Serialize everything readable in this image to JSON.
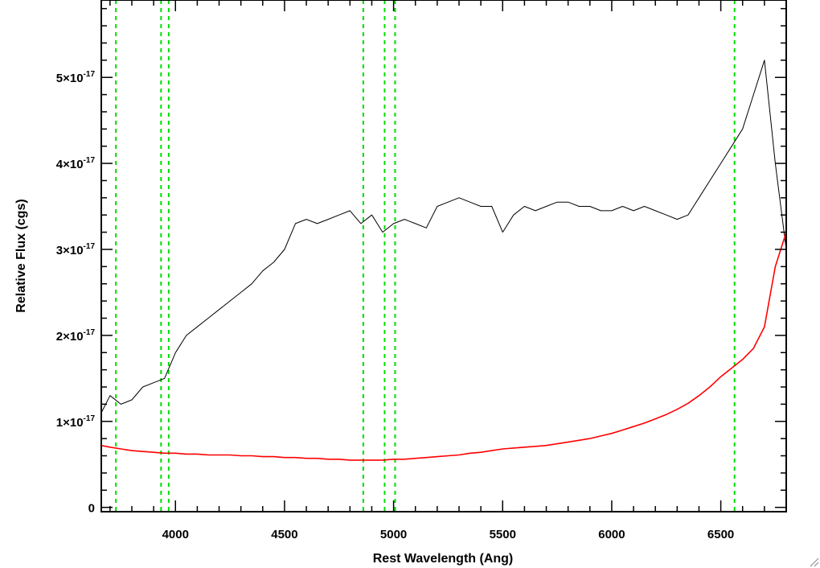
{
  "chart_data": {
    "type": "line",
    "title": "",
    "xlabel": "Rest Wavelength (Ang)",
    "ylabel": "Relative Flux (cgs)",
    "xlim": [
      3660,
      6800
    ],
    "ylim": [
      -5e-19,
      5.9e-17
    ],
    "grid": false,
    "x_ticks": [
      4000,
      4500,
      5000,
      5500,
      6000,
      6500
    ],
    "x_tick_labels": [
      "4000",
      "4500",
      "5000",
      "5500",
      "6000",
      "6500"
    ],
    "y_ticks": [
      0,
      1e-17,
      2e-17,
      3e-17,
      4e-17,
      5e-17
    ],
    "y_tick_labels": [
      {
        "mantissa": "0",
        "exponent": ""
      },
      {
        "mantissa": "1×10",
        "exponent": "-17"
      },
      {
        "mantissa": "2×10",
        "exponent": "-17"
      },
      {
        "mantissa": "3×10",
        "exponent": "-17"
      },
      {
        "mantissa": "4×10",
        "exponent": "-17"
      },
      {
        "mantissa": "5×10",
        "exponent": "-17"
      }
    ],
    "vertical_lines": [
      3727,
      3934,
      3969,
      4861,
      4959,
      5007,
      6563
    ],
    "series": [
      {
        "color": "#000000",
        "style": "solid",
        "x": [
          3660,
          3700,
          3750,
          3800,
          3850,
          3900,
          3950,
          4000,
          4050,
          4100,
          4150,
          4200,
          4250,
          4300,
          4350,
          4400,
          4450,
          4500,
          4550,
          4600,
          4650,
          4700,
          4750,
          4800,
          4850,
          4900,
          4950,
          5000,
          5050,
          5100,
          5150,
          5200,
          5250,
          5300,
          5350,
          5400,
          5450,
          5500,
          5550,
          5600,
          5650,
          5700,
          5750,
          5800,
          5850,
          5900,
          5950,
          6000,
          6050,
          6100,
          6150,
          6200,
          6250,
          6300,
          6350,
          6400,
          6450,
          6500,
          6550,
          6600,
          6650,
          6700,
          6750,
          6800
        ],
        "values": [
          1.1e-17,
          1.3e-17,
          1.2e-17,
          1.25e-17,
          1.4e-17,
          1.45e-17,
          1.5e-17,
          1.8e-17,
          2e-17,
          2.1e-17,
          2.2e-17,
          2.3e-17,
          2.4e-17,
          2.5e-17,
          2.6e-17,
          2.75e-17,
          2.85e-17,
          3e-17,
          3.3e-17,
          3.35e-17,
          3.3e-17,
          3.35e-17,
          3.4e-17,
          3.45e-17,
          3.3e-17,
          3.4e-17,
          3.2e-17,
          3.3e-17,
          3.35e-17,
          3.3e-17,
          3.25e-17,
          3.5e-17,
          3.55e-17,
          3.6e-17,
          3.55e-17,
          3.5e-17,
          3.5e-17,
          3.2e-17,
          3.4e-17,
          3.5e-17,
          3.45e-17,
          3.5e-17,
          3.55e-17,
          3.55e-17,
          3.5e-17,
          3.5e-17,
          3.45e-17,
          3.45e-17,
          3.5e-17,
          3.45e-17,
          3.5e-17,
          3.45e-17,
          3.4e-17,
          3.35e-17,
          3.4e-17,
          3.6e-17,
          3.8e-17,
          4e-17,
          4.2e-17,
          4.4e-17,
          4.8e-17,
          5.2e-17,
          4e-17,
          3e-17
        ]
      },
      {
        "color": "#ff0000",
        "style": "solid",
        "x": [
          3660,
          3700,
          3750,
          3800,
          3850,
          3900,
          3950,
          4000,
          4050,
          4100,
          4150,
          4200,
          4250,
          4300,
          4350,
          4400,
          4450,
          4500,
          4550,
          4600,
          4650,
          4700,
          4750,
          4800,
          4850,
          4900,
          4950,
          5000,
          5050,
          5100,
          5150,
          5200,
          5250,
          5300,
          5350,
          5400,
          5450,
          5500,
          5550,
          5600,
          5650,
          5700,
          5750,
          5800,
          5850,
          5900,
          5950,
          6000,
          6050,
          6100,
          6150,
          6200,
          6250,
          6300,
          6350,
          6400,
          6450,
          6500,
          6550,
          6600,
          6650,
          6700,
          6750,
          6800
        ],
        "values": [
          7.2e-18,
          7e-18,
          6.8e-18,
          6.6e-18,
          6.5e-18,
          6.4e-18,
          6.3e-18,
          6.3e-18,
          6.2e-18,
          6.2e-18,
          6.1e-18,
          6.1e-18,
          6.1e-18,
          6e-18,
          6e-18,
          5.9e-18,
          5.9e-18,
          5.8e-18,
          5.8e-18,
          5.7e-18,
          5.7e-18,
          5.6e-18,
          5.6e-18,
          5.5e-18,
          5.5e-18,
          5.5e-18,
          5.5e-18,
          5.6e-18,
          5.6e-18,
          5.7e-18,
          5.8e-18,
          5.9e-18,
          6e-18,
          6.1e-18,
          6.3e-18,
          6.4e-18,
          6.6e-18,
          6.8e-18,
          6.9e-18,
          7e-18,
          7.1e-18,
          7.2e-18,
          7.4e-18,
          7.6e-18,
          7.8e-18,
          8e-18,
          8.3e-18,
          8.6e-18,
          9e-18,
          9.4e-18,
          9.8e-18,
          1.03e-17,
          1.08e-17,
          1.14e-17,
          1.21e-17,
          1.3e-17,
          1.4e-17,
          1.52e-17,
          1.62e-17,
          1.72e-17,
          1.85e-17,
          2.1e-17,
          2.8e-17,
          3.2e-17
        ]
      }
    ]
  },
  "colors": {
    "data_line": "#000000",
    "model_line": "#ff0000",
    "marker_lines": "#00dd00",
    "axes": "#000000",
    "background": "#ffffff"
  }
}
